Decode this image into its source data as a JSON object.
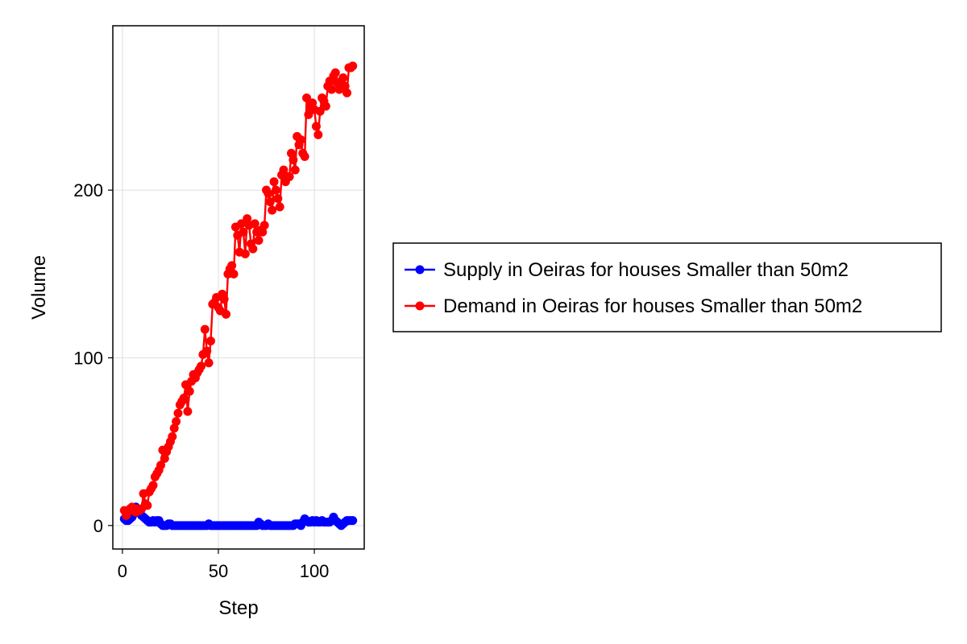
{
  "chart_data": {
    "type": "line",
    "title": "",
    "xlabel": "Step",
    "ylabel": "Volume",
    "xlim": [
      -5,
      126
    ],
    "ylim": [
      -14,
      298
    ],
    "xticks": [
      0,
      50,
      100
    ],
    "yticks": [
      0,
      100,
      200
    ],
    "grid": true,
    "legend_position": "right",
    "series": [
      {
        "name": "Supply in Oeiras for houses Smaller than 50m2",
        "color": "#0000ff",
        "x": [
          1,
          2,
          3,
          4,
          5,
          6,
          7,
          8,
          9,
          10,
          11,
          12,
          13,
          14,
          15,
          16,
          17,
          18,
          19,
          20,
          21,
          22,
          23,
          24,
          25,
          26,
          27,
          28,
          29,
          30,
          31,
          32,
          33,
          34,
          35,
          36,
          37,
          38,
          39,
          40,
          41,
          42,
          43,
          44,
          45,
          46,
          47,
          48,
          49,
          50,
          51,
          52,
          53,
          54,
          55,
          56,
          57,
          58,
          59,
          60,
          61,
          62,
          63,
          64,
          65,
          66,
          67,
          68,
          69,
          70,
          71,
          72,
          73,
          74,
          75,
          76,
          77,
          78,
          79,
          80,
          81,
          82,
          83,
          84,
          85,
          86,
          87,
          88,
          89,
          90,
          91,
          92,
          93,
          94,
          95,
          96,
          97,
          98,
          99,
          100,
          101,
          102,
          103,
          104,
          105,
          106,
          107,
          108,
          109,
          110,
          111,
          112,
          113,
          114,
          115,
          116,
          117,
          118,
          119,
          120
        ],
        "values": [
          4,
          3,
          3,
          4,
          5,
          7,
          11,
          10,
          8,
          6,
          5,
          4,
          3,
          2,
          2,
          3,
          2,
          3,
          3,
          1,
          0,
          0,
          0,
          1,
          1,
          0,
          0,
          0,
          0,
          0,
          0,
          0,
          0,
          0,
          0,
          0,
          0,
          0,
          0,
          0,
          0,
          0,
          0,
          0,
          1,
          0,
          0,
          0,
          0,
          0,
          0,
          0,
          0,
          0,
          0,
          0,
          0,
          0,
          0,
          0,
          0,
          0,
          0,
          0,
          0,
          0,
          0,
          0,
          0,
          0,
          2,
          1,
          0,
          0,
          0,
          1,
          0,
          0,
          0,
          0,
          0,
          0,
          0,
          0,
          0,
          0,
          0,
          0,
          0,
          1,
          1,
          1,
          0,
          2,
          4,
          3,
          2,
          2,
          3,
          2,
          3,
          2,
          2,
          3,
          2,
          2,
          2,
          2,
          3,
          5,
          3,
          2,
          1,
          0,
          1,
          2,
          3,
          3,
          3,
          3
        ]
      },
      {
        "name": "Demand in Oeiras for houses Smaller than 50m2",
        "color": "#ff0000",
        "x": [
          1,
          2,
          3,
          4,
          5,
          6,
          7,
          8,
          9,
          10,
          11,
          12,
          13,
          14,
          15,
          16,
          17,
          18,
          19,
          20,
          21,
          22,
          23,
          24,
          25,
          26,
          27,
          28,
          29,
          30,
          31,
          32,
          33,
          34,
          35,
          36,
          37,
          38,
          39,
          40,
          41,
          42,
          43,
          44,
          45,
          46,
          47,
          48,
          49,
          50,
          51,
          52,
          53,
          54,
          55,
          56,
          57,
          58,
          59,
          60,
          61,
          62,
          63,
          64,
          65,
          66,
          67,
          68,
          69,
          70,
          71,
          72,
          73,
          74,
          75,
          76,
          77,
          78,
          79,
          80,
          81,
          82,
          83,
          84,
          85,
          86,
          87,
          88,
          89,
          90,
          91,
          92,
          93,
          94,
          95,
          96,
          97,
          98,
          99,
          100,
          101,
          102,
          103,
          104,
          105,
          106,
          107,
          108,
          109,
          110,
          111,
          112,
          113,
          114,
          115,
          116,
          117,
          118,
          119,
          120
        ],
        "values": [
          9,
          6,
          8,
          10,
          11,
          9,
          8,
          10,
          9,
          10,
          19,
          13,
          12,
          20,
          22,
          24,
          29,
          31,
          33,
          36,
          45,
          40,
          44,
          47,
          50,
          53,
          58,
          62,
          67,
          72,
          74,
          76,
          84,
          68,
          80,
          86,
          90,
          88,
          91,
          93,
          95,
          102,
          117,
          104,
          97,
          110,
          132,
          133,
          136,
          130,
          128,
          138,
          135,
          126,
          150,
          153,
          155,
          150,
          178,
          173,
          163,
          180,
          175,
          162,
          183,
          179,
          168,
          165,
          180,
          175,
          170,
          176,
          175,
          179,
          200,
          198,
          193,
          188,
          205,
          200,
          195,
          190,
          209,
          212,
          205,
          208,
          208,
          222,
          218,
          212,
          232,
          227,
          230,
          222,
          220,
          255,
          245,
          250,
          252,
          248,
          238,
          233,
          247,
          255,
          253,
          250,
          262,
          265,
          260,
          268,
          270,
          264,
          260,
          265,
          267,
          262,
          258,
          273,
          273,
          274
        ]
      }
    ]
  }
}
